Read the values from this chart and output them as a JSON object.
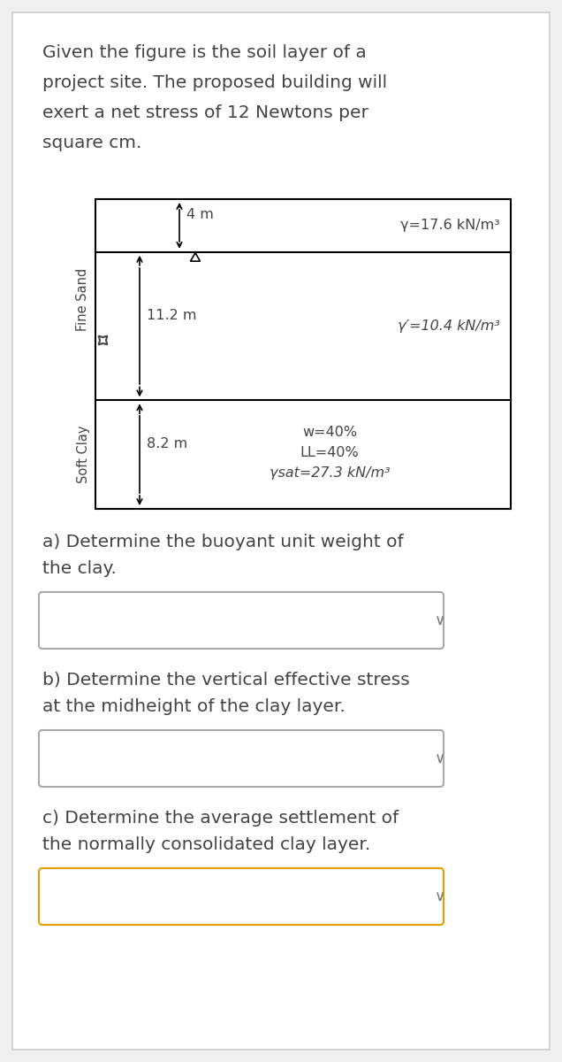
{
  "bg_color": "#f0f0f0",
  "panel_bg": "#ffffff",
  "intro_text": "Given the figure is the soil layer of a\nproject site. The proposed building will\nexert a net stress of 12 Newtons per\nsquare cm.",
  "intro_fontsize": 14.5,
  "diagram": {
    "layer1_label": "4 m",
    "layer2_label": "11.2 m",
    "layer3_label": "8.2 m",
    "layer1_gamma": "γ=17.6 kN/m³",
    "layer2_gamma": "γ′=10.4 kN/m³",
    "layer3_w": "w=40%",
    "layer3_ll": "LL=40%",
    "layer3_gamma": "γsat=27.3 kN/m³",
    "side_label_sand": "Fine Sand",
    "side_label_clay": "Soft Clay"
  },
  "qa_text": [
    "a) Determine the buoyant unit weight of\nthe clay.",
    "b) Determine the vertical effective stress\nat the midheight of the clay layer.",
    "c) Determine the average settlement of\nthe normally consolidated clay layer."
  ],
  "box_border_colors": [
    "#aaaaaa",
    "#aaaaaa",
    "#e5a000"
  ],
  "text_color": "#444444",
  "fontsize_q": 14.5
}
